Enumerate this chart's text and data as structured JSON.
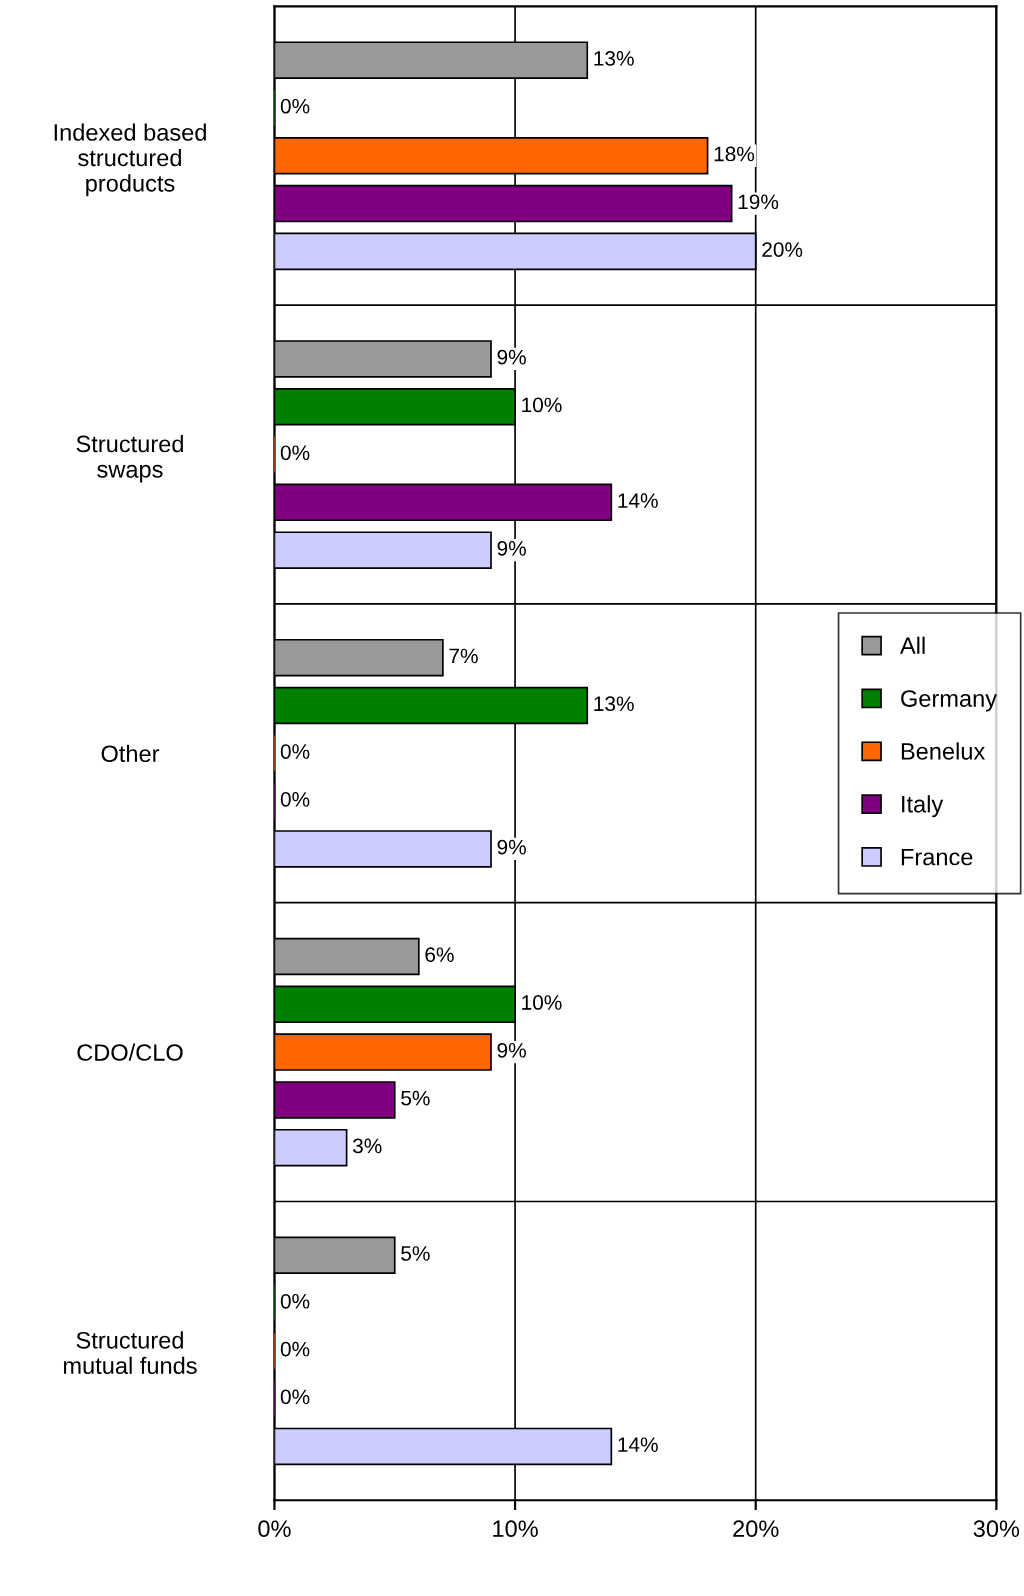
{
  "chart_data": {
    "type": "bar",
    "orientation": "horizontal",
    "categories": [
      "Indexed based structured products",
      "Structured swaps",
      "Other",
      "CDO/CLO",
      "Structured mutual funds"
    ],
    "series": [
      {
        "name": "All",
        "color": "#999999",
        "values": [
          13,
          9,
          7,
          6,
          5
        ],
        "value_labels": [
          "13%",
          "9%",
          "7%",
          "6%",
          "5%"
        ]
      },
      {
        "name": "Germany",
        "color": "#008000",
        "values": [
          0,
          10,
          13,
          10,
          0
        ],
        "value_labels": [
          "0%",
          "10%",
          "13%",
          "10%",
          "0%"
        ]
      },
      {
        "name": "Benelux",
        "color": "#ff6600",
        "values": [
          18,
          0,
          0,
          9,
          0
        ],
        "value_labels": [
          "18%",
          "0%",
          "0%",
          "9%",
          "0%"
        ]
      },
      {
        "name": "Italy",
        "color": "#800080",
        "values": [
          19,
          14,
          0,
          5,
          0
        ],
        "value_labels": [
          "19%",
          "14%",
          "0%",
          "5%",
          "0%"
        ]
      },
      {
        "name": "France",
        "color": "#ccccff",
        "values": [
          20,
          9,
          9,
          3,
          14
        ],
        "value_labels": [
          "20%",
          "9%",
          "9%",
          "3%",
          "14%"
        ]
      }
    ],
    "xlim": [
      0,
      30
    ],
    "xticks": [
      {
        "value": 0,
        "label": "0%"
      },
      {
        "value": 10,
        "label": "10%"
      },
      {
        "value": 20,
        "label": "20%"
      },
      {
        "value": 30,
        "label": "30%"
      }
    ],
    "grid": true,
    "legend": "right"
  }
}
